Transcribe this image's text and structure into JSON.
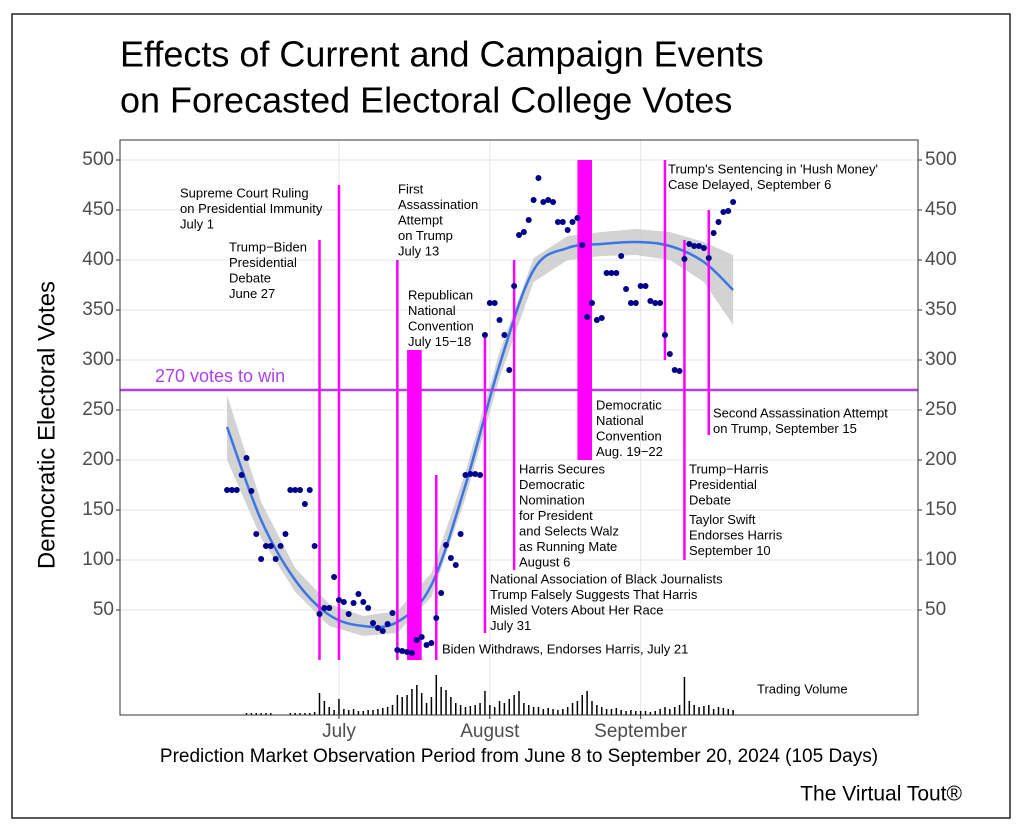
{
  "chart_data": {
    "type": "scatter",
    "title": [
      "Effects of Current and Campaign Events",
      "on Forecasted Electoral College Votes"
    ],
    "y_label": "Democratic Electoral Votes",
    "x_label": "Prediction Market Observation Period from June 8 to September 20, 2024 (105 Days)",
    "brand": "The Virtual Tout®",
    "xlim": [
      -22,
      142
    ],
    "ylim": [
      -55,
      520
    ],
    "xticks": [
      {
        "value": 23,
        "label": "July"
      },
      {
        "value": 54,
        "label": "August"
      },
      {
        "value": 85,
        "label": "September"
      }
    ],
    "yticks": [
      50,
      100,
      150,
      200,
      250,
      300,
      350,
      400,
      450,
      500
    ],
    "grid": true,
    "color": "#00008b",
    "x": [
      0,
      1,
      2,
      3,
      4,
      5,
      6,
      7,
      8,
      9,
      10,
      11,
      12,
      13,
      14,
      15,
      16,
      17,
      18,
      19,
      20,
      21,
      22,
      23,
      24,
      25,
      26,
      27,
      28,
      29,
      30,
      31,
      32,
      33,
      34,
      35,
      36,
      37,
      38,
      39,
      40,
      41,
      42,
      43,
      44,
      45,
      46,
      47,
      48,
      49,
      50,
      51,
      52,
      53,
      54,
      55,
      56,
      57,
      58,
      59,
      60,
      61,
      62,
      63,
      64,
      65,
      66,
      67,
      68,
      69,
      70,
      71,
      72,
      73,
      74,
      75,
      76,
      77,
      78,
      79,
      80,
      81,
      82,
      83,
      84,
      85,
      86,
      87,
      88,
      89,
      90,
      91,
      92,
      93,
      94,
      95,
      96,
      97,
      98,
      99,
      100,
      101,
      102,
      103,
      104
    ],
    "values": [
      170,
      170,
      170,
      185,
      202,
      169,
      126,
      101,
      114,
      114,
      101,
      114,
      126,
      170,
      170,
      170,
      156,
      170,
      114,
      46,
      52,
      52,
      83,
      60,
      58,
      46,
      57,
      66,
      58,
      52,
      37,
      32,
      29,
      36,
      47,
      10,
      9,
      8,
      7,
      20,
      23,
      15,
      17,
      42,
      67,
      115,
      102,
      95,
      126,
      185,
      186,
      186,
      185,
      325,
      357,
      357,
      340,
      325,
      290,
      374,
      425,
      428,
      440,
      460,
      482,
      458,
      460,
      458,
      438,
      438,
      430,
      438,
      442,
      415,
      343,
      357,
      340,
      342,
      387,
      387,
      387,
      404,
      371,
      357,
      357,
      374,
      374,
      359,
      357,
      357,
      325,
      306,
      290,
      289,
      401,
      416,
      414,
      414,
      412,
      402,
      427,
      438,
      448,
      449,
      458
    ],
    "trend": {
      "color": "#3a75e6",
      "band_color": "#c4c4c4",
      "x": [
        0,
        7,
        14,
        21,
        28,
        35,
        42,
        49,
        56,
        63,
        70,
        77,
        84,
        91,
        98,
        104
      ],
      "values": [
        233,
        140,
        80,
        45,
        34,
        38,
        75,
        175,
        295,
        390,
        412,
        416,
        418,
        414,
        398,
        370
      ],
      "low": [
        200,
        122,
        68,
        34,
        24,
        27,
        63,
        162,
        282,
        378,
        400,
        404,
        405,
        400,
        378,
        335
      ],
      "high": [
        265,
        158,
        92,
        56,
        44,
        49,
        87,
        188,
        308,
        402,
        424,
        428,
        431,
        428,
        418,
        405
      ]
    },
    "threshold": {
      "value": 270,
      "label": "270 votes to win",
      "color": "#b03ff0"
    },
    "event_color": "#ff00ff",
    "events": [
      {
        "x": 19,
        "from": 0,
        "to": 420,
        "text": [
          [
            "Trump−Biden",
            "Presidential",
            "Debate",
            "June 27"
          ]
        ]
      },
      {
        "x": 23,
        "from": 0,
        "to": 475,
        "text": [
          [
            "Supreme Court Ruling",
            "on Presidential Immunity",
            "July 1"
          ]
        ]
      },
      {
        "x": 35,
        "from": 0,
        "to": 400,
        "text": [
          [
            "First",
            "Assassination",
            "Attempt",
            "on Trump",
            "July 13"
          ]
        ]
      },
      {
        "x": 37,
        "x_end": 40,
        "from": 0,
        "to": 310,
        "text": [
          [
            "Republican",
            "National",
            "Convention",
            "July 15−18"
          ]
        ]
      },
      {
        "x": 43,
        "from": 0,
        "to": 185,
        "text": [
          [
            "Biden Withdraws, Endorses Harris, July 21"
          ]
        ]
      },
      {
        "x": 53,
        "from": 27,
        "to": 325,
        "text": [
          [
            "National Association of Black Journalists",
            "Trump Falsely Suggests That Harris",
            "Misled Voters About Her Race",
            "July 31"
          ]
        ]
      },
      {
        "x": 59,
        "from": 90,
        "to": 400,
        "text": [
          [
            "Harris Secures",
            "Democratic",
            "Nomination",
            "for President",
            "and Selects Walz",
            "as Running Mate",
            "August 6"
          ]
        ]
      },
      {
        "x": 72,
        "x_end": 75,
        "from": 200,
        "to": 500,
        "text": [
          [
            "Democratic",
            "National",
            "Convention",
            "Aug. 19−22"
          ]
        ]
      },
      {
        "x": 90,
        "from": 300,
        "to": 500,
        "text": [
          [
            "Trump's Sentencing in 'Hush Money'",
            "Case Delayed, September 6"
          ]
        ]
      },
      {
        "x": 94,
        "from": 100,
        "to": 420,
        "text": [
          [
            "Trump−Harris",
            "Presidential",
            "Debate"
          ],
          [
            "Taylor Swift",
            "Endorses Harris",
            "September 10"
          ]
        ]
      },
      {
        "x": 99,
        "from": 225,
        "to": 450,
        "text": [
          [
            "Second Assassination Attempt",
            "on Trump, September 15"
          ]
        ]
      }
    ],
    "trading_volume": {
      "label": "Trading Volume",
      "values": [
        0,
        0,
        0,
        0,
        2,
        2,
        2,
        2,
        2,
        2,
        0,
        0,
        0,
        2,
        2,
        2,
        2,
        2,
        3,
        22,
        14,
        8,
        5,
        16,
        6,
        5,
        6,
        4,
        4,
        5,
        5,
        6,
        7,
        8,
        10,
        20,
        18,
        20,
        26,
        30,
        22,
        12,
        18,
        40,
        28,
        25,
        18,
        12,
        10,
        8,
        9,
        10,
        12,
        24,
        10,
        8,
        14,
        12,
        16,
        20,
        24,
        12,
        10,
        8,
        8,
        6,
        7,
        6,
        5,
        6,
        8,
        12,
        14,
        20,
        24,
        14,
        10,
        8,
        6,
        6,
        7,
        5,
        4,
        5,
        4,
        4,
        4,
        3,
        4,
        6,
        8,
        6,
        8,
        10,
        38,
        14,
        10,
        8,
        9,
        10,
        6,
        8,
        7,
        6,
        5
      ]
    }
  }
}
